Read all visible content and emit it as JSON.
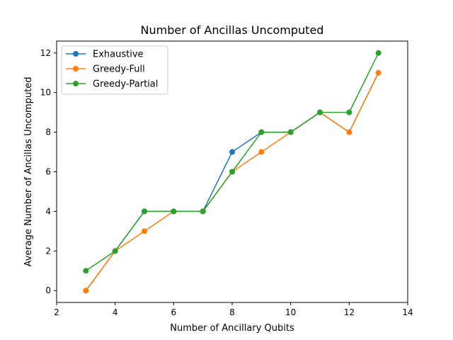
{
  "chart_data": {
    "type": "line",
    "title": "Number of Ancillas Uncomputed",
    "xlabel": "Number of Ancillary Qubits",
    "ylabel": "Average Number of Ancillas Uncomputed",
    "xlim": [
      2,
      14
    ],
    "ylim": [
      -0.6,
      12.6
    ],
    "xticks": [
      2,
      4,
      6,
      8,
      10,
      12,
      14
    ],
    "yticks": [
      0,
      2,
      4,
      6,
      8,
      10,
      12
    ],
    "grid": false,
    "legend_position": "upper-left",
    "x": [
      3,
      4,
      5,
      6,
      7,
      8,
      9,
      10,
      11,
      12,
      13
    ],
    "series": [
      {
        "name": "Exhaustive",
        "color": "#1f77b4",
        "values": [
          0,
          2,
          4,
          4,
          4,
          7,
          8,
          8,
          9,
          8,
          11
        ]
      },
      {
        "name": "Greedy-Full",
        "color": "#ff7f0e",
        "values": [
          0,
          2,
          3,
          4,
          4,
          6,
          7,
          8,
          9,
          8,
          11
        ]
      },
      {
        "name": "Greedy-Partial",
        "color": "#2ca02c",
        "values": [
          1,
          2,
          4,
          4,
          4,
          6,
          8,
          8,
          9,
          9,
          12
        ]
      }
    ]
  }
}
